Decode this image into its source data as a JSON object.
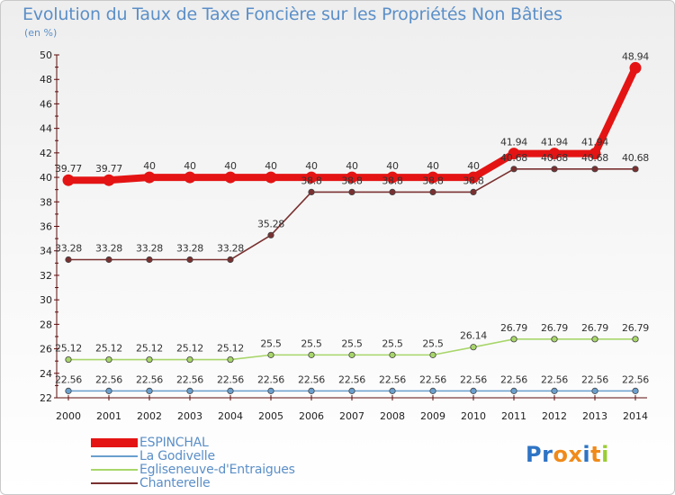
{
  "title": "Evolution du Taux de Taxe Foncière sur les Propriétés Non Bâties",
  "unit_label": "(en %)",
  "brand": {
    "name": "Proxiti",
    "letters": [
      "P",
      "r",
      "o",
      "x",
      "i",
      "t",
      "i"
    ]
  },
  "colors": {
    "title": "#5b8fc8",
    "axis": "#5e0c0c",
    "ESPINCHAL": "#e41414",
    "La Godivelle": "#6a9fce",
    "Egliseneuve-d'Entraigues": "#a8d66a",
    "Chanterelle": "#7a3030",
    "brand_letters": [
      "#2e74c4",
      "#2e74c4",
      "#f08a1a",
      "#f08a1a",
      "#2e74c4",
      "#f08a1a",
      "#9acd32"
    ]
  },
  "chart_data": {
    "type": "line",
    "title": "Evolution du Taux de Taxe Foncière sur les Propriétés Non Bâties",
    "ylabel": "(en %)",
    "xlabel": "",
    "ylim": [
      22,
      50
    ],
    "y_ticks": [
      22,
      24,
      26,
      28,
      30,
      32,
      34,
      36,
      38,
      40,
      42,
      44,
      46,
      48,
      50
    ],
    "x": [
      "2000",
      "2001",
      "2002",
      "2003",
      "2004",
      "2005",
      "2006",
      "2007",
      "2008",
      "2009",
      "2010",
      "2011",
      "2012",
      "2013",
      "2014"
    ],
    "grid": false,
    "legend": "bottom-left",
    "series": [
      {
        "name": "ESPINCHAL",
        "values": [
          39.77,
          39.77,
          40,
          40,
          40,
          40,
          40,
          40,
          40,
          40,
          40,
          41.94,
          41.94,
          41.94,
          48.94
        ],
        "labels": [
          "39.77",
          "39.77",
          "40",
          "40",
          "40",
          "40",
          "40",
          "40",
          "40",
          "40",
          "40",
          "41.94",
          "41.94",
          "41.94",
          "48.94"
        ]
      },
      {
        "name": "La Godivelle",
        "values": [
          22.56,
          22.56,
          22.56,
          22.56,
          22.56,
          22.56,
          22.56,
          22.56,
          22.56,
          22.56,
          22.56,
          22.56,
          22.56,
          22.56,
          22.56
        ],
        "labels": [
          "22.56",
          "22.56",
          "22.56",
          "22.56",
          "22.56",
          "22.56",
          "22.56",
          "22.56",
          "22.56",
          "22.56",
          "22.56",
          "22.56",
          "22.56",
          "22.56",
          "22.56"
        ]
      },
      {
        "name": "Egliseneuve-d'Entraigues",
        "values": [
          25.12,
          25.12,
          25.12,
          25.12,
          25.12,
          25.5,
          25.5,
          25.5,
          25.5,
          25.5,
          26.14,
          26.79,
          26.79,
          26.79,
          26.79
        ],
        "labels": [
          "25.12",
          "25.12",
          "25.12",
          "25.12",
          "25.12",
          "25.5",
          "25.5",
          "25.5",
          "25.5",
          "25.5",
          "26.14",
          "26.79",
          "26.79",
          "26.79",
          "26.79"
        ]
      },
      {
        "name": "Chanterelle",
        "values": [
          33.28,
          33.28,
          33.28,
          33.28,
          33.28,
          35.28,
          38.8,
          38.8,
          38.8,
          38.8,
          38.8,
          40.68,
          40.68,
          40.68,
          40.68
        ],
        "labels": [
          "33.28",
          "33.28",
          "33.28",
          "33.28",
          "33.28",
          "35.28",
          "38.8",
          "38.8",
          "38.8",
          "38.8",
          "38.8",
          "40.68",
          "40.68",
          "40.68",
          "40.68"
        ]
      }
    ]
  }
}
